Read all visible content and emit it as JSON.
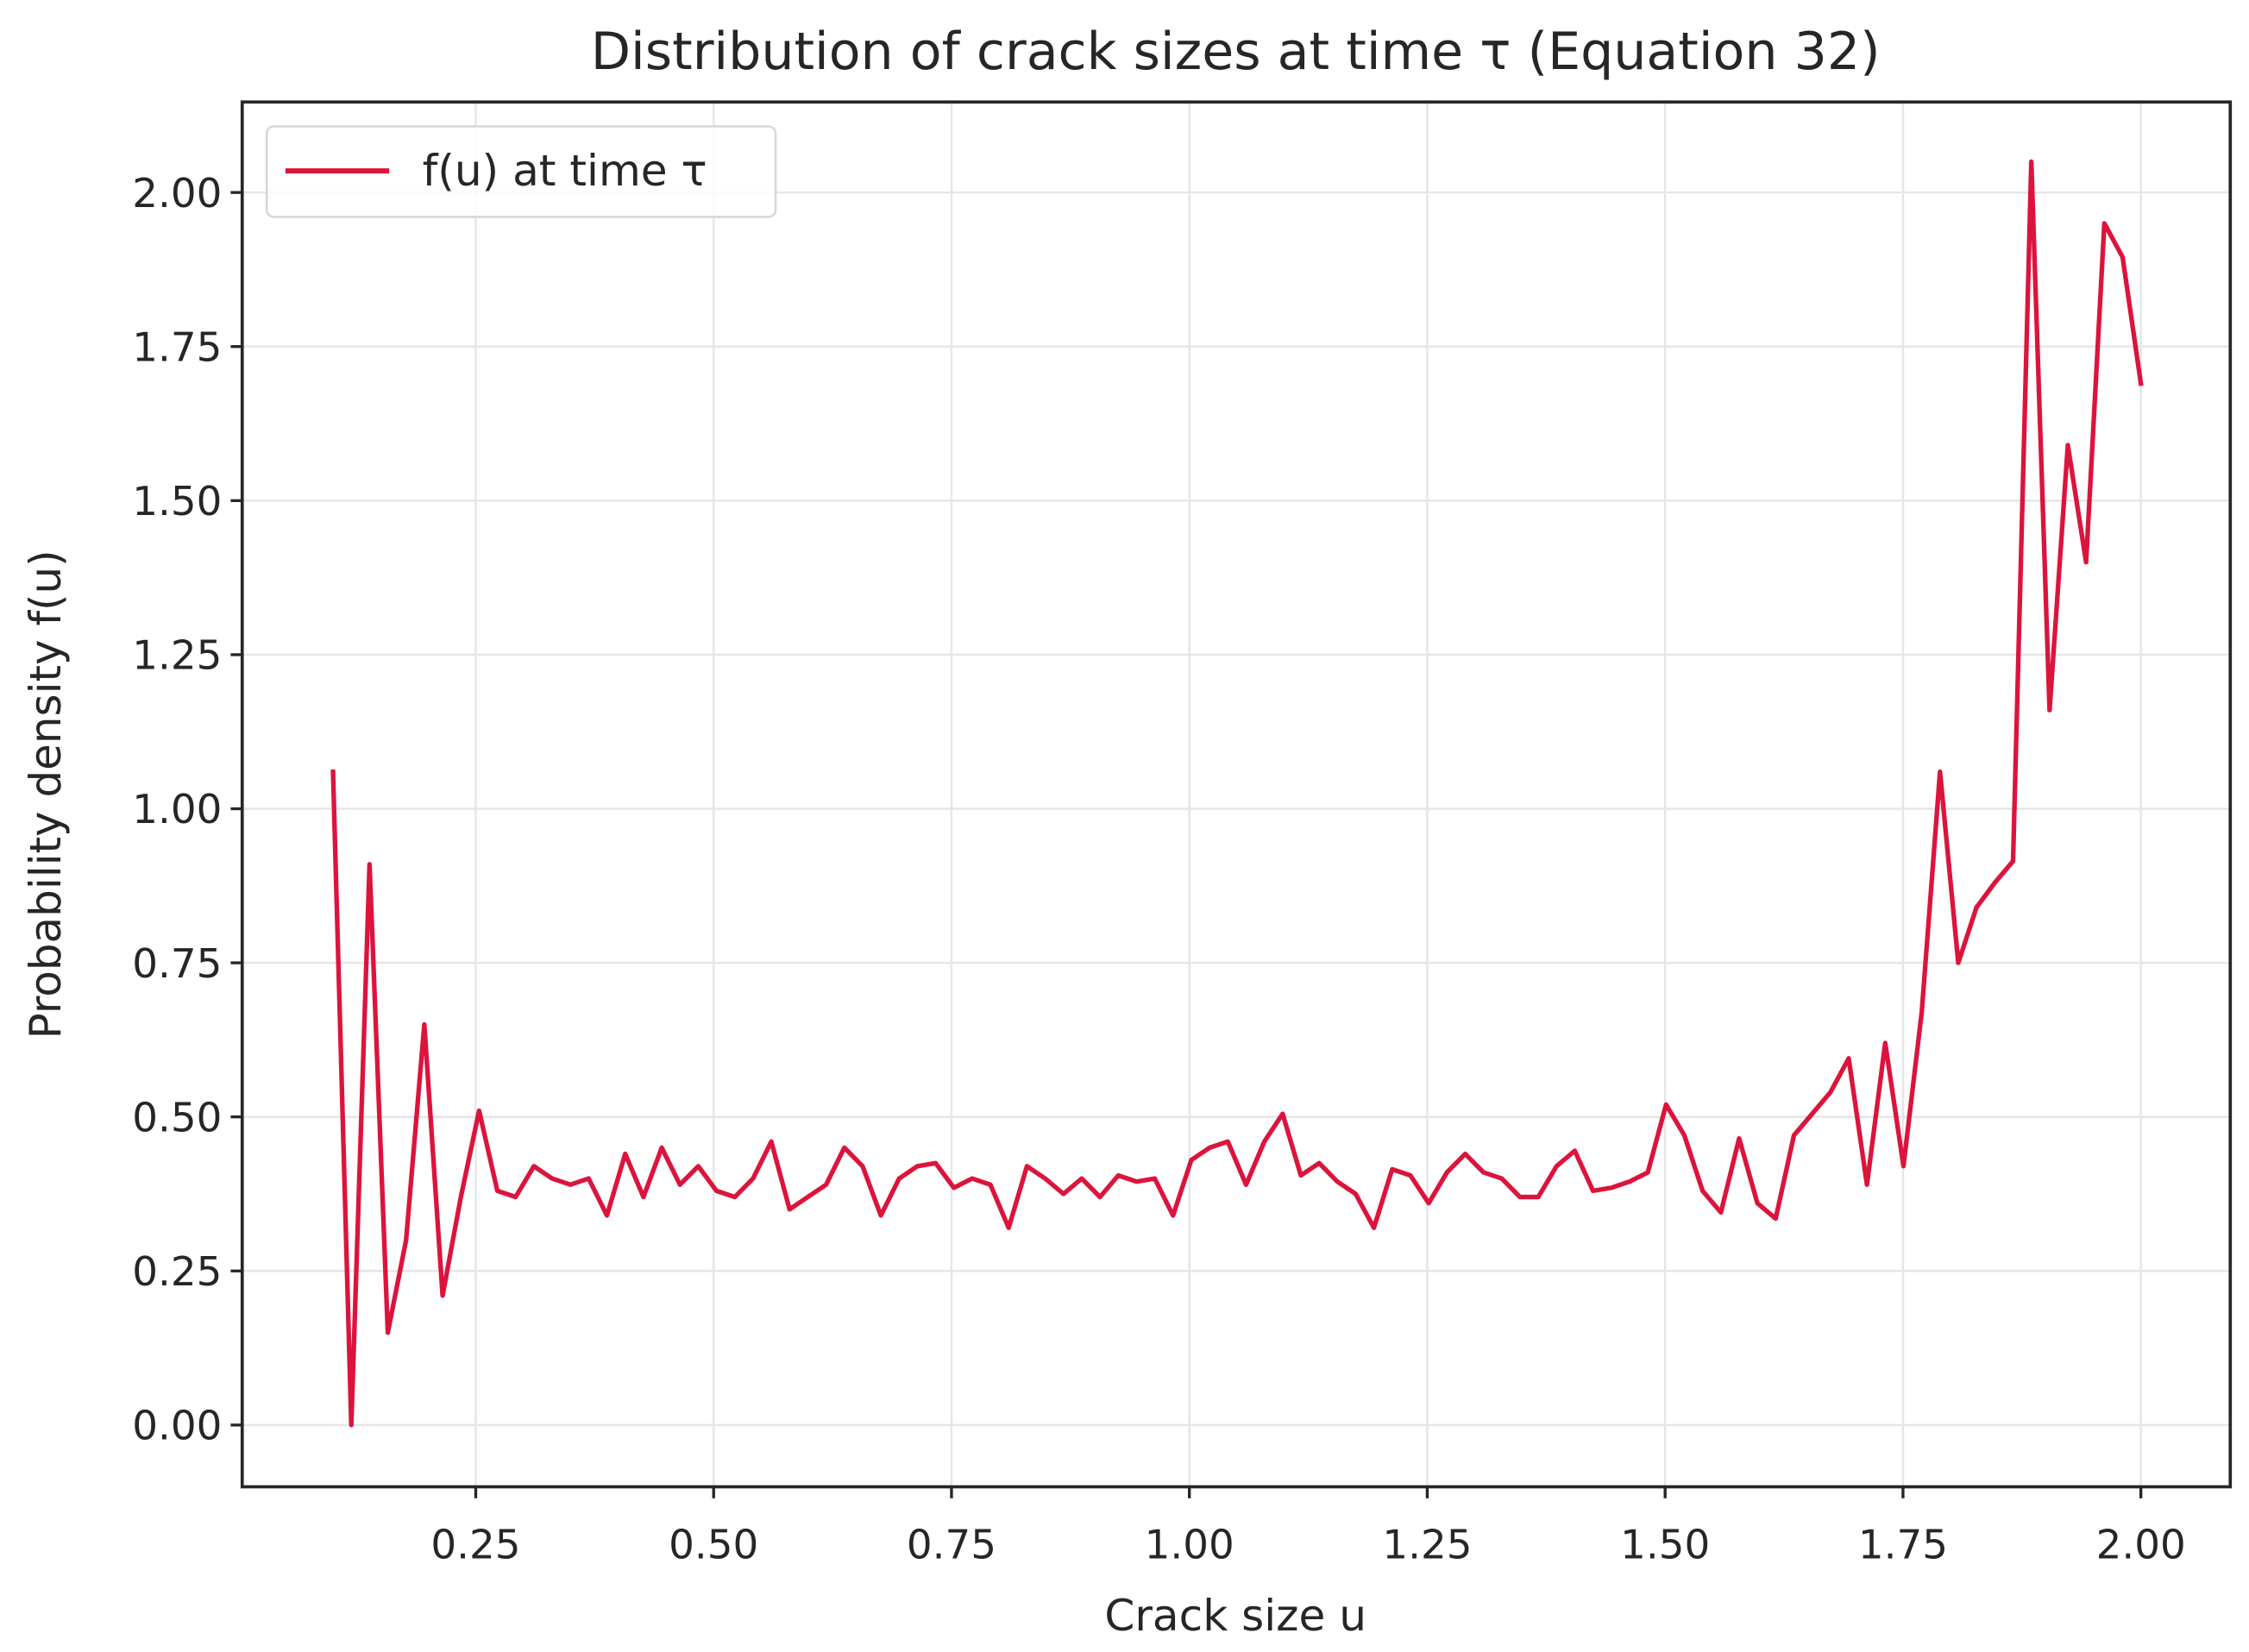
{
  "chart_data": {
    "type": "line",
    "title": "Distribution of crack sizes at time τ (Equation 32)",
    "xlabel": "Crack size u",
    "ylabel": "Probability density f(u)",
    "xlim": [
      0.005,
      2.095
    ],
    "ylim": [
      -0.1,
      2.15
    ],
    "grid": true,
    "legend_position": "upper left",
    "x_ticks": [
      0.25,
      0.5,
      0.75,
      1.0,
      1.25,
      1.5,
      1.75,
      2.0
    ],
    "x_tick_labels": [
      "0.25",
      "0.50",
      "0.75",
      "1.00",
      "1.25",
      "1.50",
      "1.75",
      "2.00"
    ],
    "y_ticks": [
      0.0,
      0.25,
      0.5,
      0.75,
      1.0,
      1.25,
      1.5,
      1.75,
      2.0
    ],
    "y_tick_labels": [
      "0.00",
      "0.25",
      "0.50",
      "0.75",
      "1.00",
      "1.25",
      "1.50",
      "1.75",
      "2.00"
    ],
    "x_start": 0.1,
    "x_end": 2.0,
    "n_points": 100,
    "series": [
      {
        "name": "f(u) at time τ",
        "color": "#dc143c",
        "values": [
          1.06,
          0.0,
          0.91,
          0.15,
          0.3,
          0.65,
          0.21,
          0.37,
          0.51,
          0.38,
          0.37,
          0.42,
          0.4,
          0.39,
          0.4,
          0.34,
          0.44,
          0.37,
          0.45,
          0.39,
          0.42,
          0.38,
          0.37,
          0.4,
          0.46,
          0.35,
          0.37,
          0.39,
          0.45,
          0.42,
          0.34,
          0.4,
          0.42,
          0.425,
          0.385,
          0.4,
          0.39,
          0.32,
          0.42,
          0.4,
          0.375,
          0.4,
          0.37,
          0.405,
          0.395,
          0.4,
          0.34,
          0.43,
          0.45,
          0.46,
          0.39,
          0.46,
          0.505,
          0.405,
          0.425,
          0.395,
          0.375,
          0.32,
          0.415,
          0.405,
          0.36,
          0.41,
          0.44,
          0.41,
          0.4,
          0.37,
          0.37,
          0.42,
          0.445,
          0.38,
          0.385,
          0.395,
          0.41,
          0.52,
          0.47,
          0.38,
          0.345,
          0.465,
          0.36,
          0.335,
          0.47,
          0.505,
          0.54,
          0.595,
          0.39,
          0.62,
          0.42,
          0.67,
          1.06,
          0.75,
          0.84,
          0.88,
          0.915,
          2.05,
          1.16,
          1.59,
          1.4,
          1.95,
          1.895,
          1.69
        ]
      }
    ]
  },
  "legend": {
    "label": "f(u) at time τ"
  }
}
